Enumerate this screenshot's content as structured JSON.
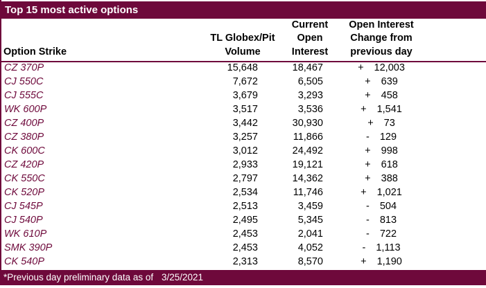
{
  "title": "Top 15 most active options",
  "columns": {
    "option_strike": "Option Strike",
    "volume": "TL Globex/Pit\nVolume",
    "open_interest": "Current\nOpen\nInterest",
    "change": "Open Interest\nChange from\nprevious day"
  },
  "rows": [
    {
      "strike": "CZ 370P",
      "volume": "15,648",
      "open_interest": "18,467",
      "change_sign": "+",
      "change_value": "12,003"
    },
    {
      "strike": "CJ 550C",
      "volume": "7,672",
      "open_interest": "6,505",
      "change_sign": "+",
      "change_value": "639"
    },
    {
      "strike": "CJ 555C",
      "volume": "3,679",
      "open_interest": "3,293",
      "change_sign": "+",
      "change_value": "458"
    },
    {
      "strike": "WK 600P",
      "volume": "3,517",
      "open_interest": "3,536",
      "change_sign": "+",
      "change_value": "1,541"
    },
    {
      "strike": "CZ 400P",
      "volume": "3,442",
      "open_interest": "30,930",
      "change_sign": "+",
      "change_value": "73"
    },
    {
      "strike": "CZ 380P",
      "volume": "3,257",
      "open_interest": "11,866",
      "change_sign": "-",
      "change_value": "129"
    },
    {
      "strike": "CK 600C",
      "volume": "3,012",
      "open_interest": "24,492",
      "change_sign": "+",
      "change_value": "998"
    },
    {
      "strike": "CZ 420P",
      "volume": "2,933",
      "open_interest": "19,121",
      "change_sign": "+",
      "change_value": "618"
    },
    {
      "strike": "CK 550C",
      "volume": "2,797",
      "open_interest": "14,362",
      "change_sign": "+",
      "change_value": "388"
    },
    {
      "strike": "CK 520P",
      "volume": "2,534",
      "open_interest": "11,746",
      "change_sign": "+",
      "change_value": "1,021"
    },
    {
      "strike": "CJ 545P",
      "volume": "2,513",
      "open_interest": "3,459",
      "change_sign": "-",
      "change_value": "504"
    },
    {
      "strike": "CJ 540P",
      "volume": "2,495",
      "open_interest": "5,345",
      "change_sign": "-",
      "change_value": "813"
    },
    {
      "strike": "WK 610P",
      "volume": "2,453",
      "open_interest": "2,041",
      "change_sign": "-",
      "change_value": "722"
    },
    {
      "strike": "SMK 390P",
      "volume": "2,453",
      "open_interest": "4,052",
      "change_sign": "-",
      "change_value": "1,113"
    },
    {
      "strike": "CK 540P",
      "volume": "2,313",
      "open_interest": "8,570",
      "change_sign": "+",
      "change_value": "1,190"
    }
  ],
  "footer": {
    "note": "*Previous day preliminary data as of",
    "date": "3/25/2021"
  },
  "colors": {
    "maroon": "#6E093B",
    "strike_text": "#6E093B",
    "body_text": "#000000",
    "title_text": "#FFFFFF"
  }
}
